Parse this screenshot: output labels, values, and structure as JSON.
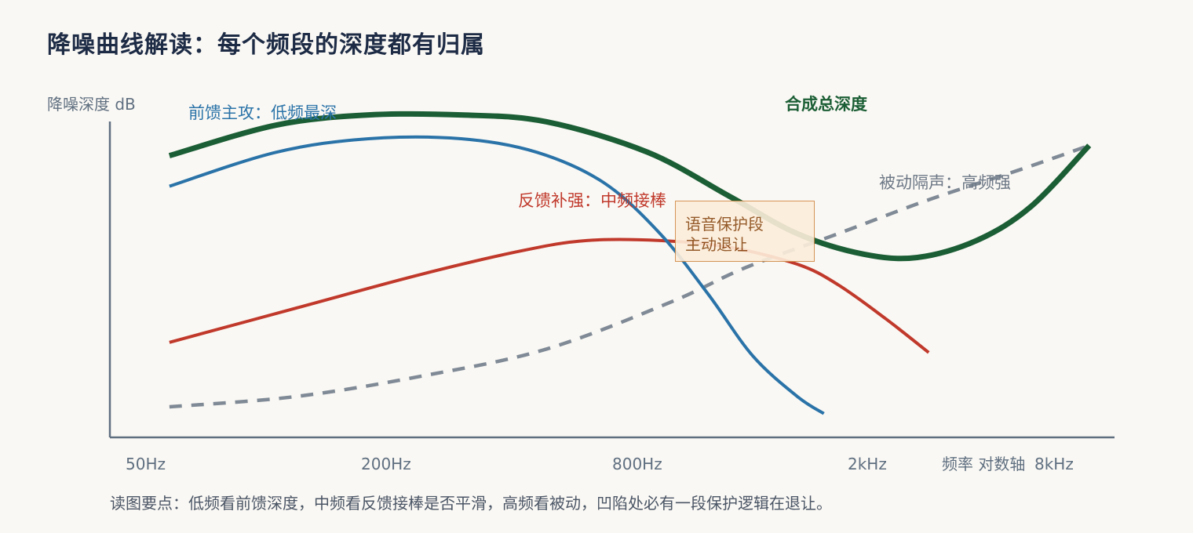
{
  "title": "降噪曲线解读：每个频段的深度都有归属",
  "note": "读图要点：低频看前馈深度，中频看反馈接棒是否平滑，高频看被动，凹陷处必有一段保护逻辑在退让。",
  "callout": {
    "line1": "语音保护段",
    "line2": "主动退让"
  },
  "colors": {
    "total": "#1b5e35",
    "feedforward": "#2a73a8",
    "feedback": "#c0392b",
    "passive": "#7f8a96",
    "axis": "#5f6f80",
    "callout_border": "#d08a45"
  },
  "chart_data": {
    "type": "line",
    "title": "降噪曲线解读：每个频段的深度都有归属",
    "ylabel": "降噪深度 dB",
    "xlabel": "频率 对数轴",
    "x_scale": "log",
    "x_ticks": [
      "50Hz",
      "200Hz",
      "800Hz",
      "2kHz",
      "8kHz"
    ],
    "grid": false,
    "series": [
      {
        "name": "合成总深度",
        "style": "solid-thick",
        "points": [
          [
            50,
            0.83
          ],
          [
            90,
            0.92
          ],
          [
            150,
            0.95
          ],
          [
            250,
            0.95
          ],
          [
            400,
            0.93
          ],
          [
            700,
            0.84
          ],
          [
            1100,
            0.71
          ],
          [
            1600,
            0.6
          ],
          [
            2300,
            0.54
          ],
          [
            3100,
            0.53
          ],
          [
            4300,
            0.58
          ],
          [
            5800,
            0.68
          ],
          [
            8000,
            0.86
          ]
        ]
      },
      {
        "name": "前馈主攻：低频最深",
        "style": "solid",
        "points": [
          [
            50,
            0.74
          ],
          [
            90,
            0.84
          ],
          [
            150,
            0.88
          ],
          [
            250,
            0.88
          ],
          [
            380,
            0.84
          ],
          [
            550,
            0.75
          ],
          [
            750,
            0.6
          ],
          [
            980,
            0.42
          ],
          [
            1250,
            0.24
          ],
          [
            1600,
            0.12
          ],
          [
            1850,
            0.07
          ]
        ]
      },
      {
        "name": "反馈补强：中频接棒",
        "style": "solid",
        "points": [
          [
            50,
            0.28
          ],
          [
            100,
            0.38
          ],
          [
            200,
            0.48
          ],
          [
            350,
            0.55
          ],
          [
            500,
            0.58
          ],
          [
            750,
            0.58
          ],
          [
            1100,
            0.56
          ],
          [
            1600,
            0.51
          ],
          [
            2000,
            0.45
          ],
          [
            2600,
            0.35
          ],
          [
            3300,
            0.25
          ]
        ]
      },
      {
        "name": "被动隔声：高频强",
        "style": "dashed",
        "points": [
          [
            50,
            0.09
          ],
          [
            100,
            0.12
          ],
          [
            200,
            0.18
          ],
          [
            400,
            0.26
          ],
          [
            800,
            0.4
          ],
          [
            1200,
            0.5
          ],
          [
            2000,
            0.6
          ],
          [
            3300,
            0.7
          ],
          [
            5500,
            0.79
          ],
          [
            8000,
            0.86
          ]
        ]
      }
    ]
  }
}
